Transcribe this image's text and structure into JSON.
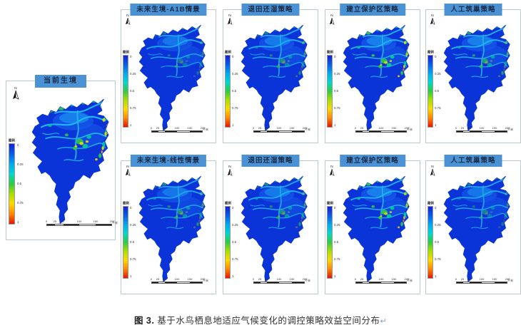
{
  "figure": {
    "caption_label": "图 3.",
    "caption_text": " 基于水鸟栖息地适应气候变化的调控策略效益空间分布",
    "caption_mark": "↵"
  },
  "north_label": "N",
  "legend": {
    "title": "图例",
    "labels": [
      "0",
      "0.25",
      "0.5",
      "0.75",
      "1"
    ],
    "colors": [
      "#1023d6",
      "#0a5ce8",
      "#00aaf0",
      "#00d8d0",
      "#2ecc40",
      "#a8e000",
      "#ffd800",
      "#ff8800",
      "#e81400"
    ]
  },
  "scalebar": {
    "ticks": [
      "0",
      "25",
      "50",
      "100",
      "150",
      "200"
    ],
    "unit": "千米"
  },
  "colors": {
    "title_bg": "#4a92d4",
    "title_text": "#1b2a45",
    "panel_border": "#bcc8d1",
    "map_base": "#0a33d8",
    "map_light": "#1558e8",
    "map_cyan": "#1fb6f2",
    "map_green": "#2fc24d",
    "map_teal": "#00c79b",
    "map_yellow": "#f2de00",
    "map_orange": "#f59022",
    "map_red": "#e83010"
  },
  "panels": [
    {
      "id": "current",
      "title": "当前生境",
      "speckle": {
        "cyan": 1,
        "green": 0.95,
        "yellow": 0.9
      }
    },
    {
      "id": "future-a1b",
      "title": "未来生境-A1B情景",
      "speckle": {
        "cyan": 0.9,
        "green": 0.4,
        "yellow": 0.2
      }
    },
    {
      "id": "wetland-return-a1b",
      "title": "退田还湿策略",
      "speckle": {
        "cyan": 0.95,
        "green": 0.55,
        "yellow": 0.3
      }
    },
    {
      "id": "protected-area-a1b",
      "title": "建立保护区策略",
      "speckle": {
        "cyan": 1,
        "green": 1,
        "yellow": 0.85
      }
    },
    {
      "id": "artificial-nest-a1b",
      "title": "人工筑巢策略",
      "speckle": {
        "cyan": 1,
        "green": 0.7,
        "yellow": 0.35
      }
    },
    {
      "id": "future-linear",
      "title": "未来生境-线性情景",
      "speckle": {
        "cyan": 0.9,
        "green": 0.6,
        "yellow": 0.3
      }
    },
    {
      "id": "wetland-return-linear",
      "title": "退田还湿策略",
      "speckle": {
        "cyan": 0.95,
        "green": 0.6,
        "yellow": 0.3
      }
    },
    {
      "id": "protected-area-linear",
      "title": "建立保护区策略",
      "speckle": {
        "cyan": 1,
        "green": 1,
        "yellow": 0.8
      }
    },
    {
      "id": "artificial-nest-linear",
      "title": "人工筑巢策略",
      "speckle": {
        "cyan": 0.9,
        "green": 0.45,
        "yellow": 0.2
      }
    }
  ]
}
